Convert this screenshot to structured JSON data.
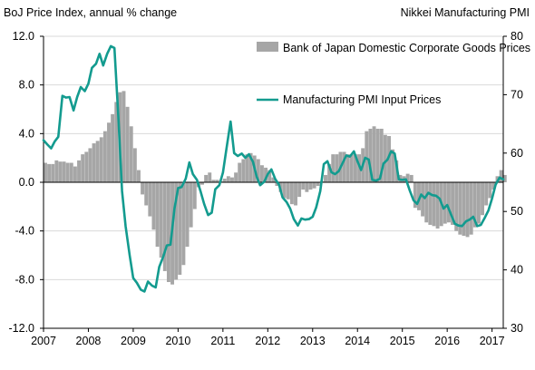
{
  "chart_data": {
    "type": "bar+line",
    "left_axis_title": "BoJ Price Index, annual % change",
    "right_axis_title": "Nikkei Manufacturing PMI",
    "left_ylim": [
      -12,
      12
    ],
    "left_yticks": [
      "12.0",
      "8.0",
      "4.0",
      "0.0",
      "-4.0",
      "-8.0",
      "-12.0"
    ],
    "right_ylim": [
      30,
      80
    ],
    "right_yticks": [
      "80",
      "70",
      "60",
      "50",
      "40",
      "30"
    ],
    "x_range": [
      2007,
      2017.25
    ],
    "x_ticks": [
      "2007",
      "2008",
      "2009",
      "2010",
      "2011",
      "2012",
      "2013",
      "2014",
      "2015",
      "2016",
      "2017"
    ],
    "grid": "horizontal",
    "legend_position": "top-right",
    "colors": {
      "bar": "#a6a6a6",
      "line": "#139b8f",
      "grid": "#d9d9d9",
      "axis": "#000000",
      "text": "#000000"
    },
    "series": [
      {
        "name": "Bank of Japan Domestic Corporate Goods Prices",
        "axis": "left",
        "kind": "bar",
        "x_start": 2007.0,
        "x_step": 0.0833,
        "values": [
          1.6,
          1.5,
          1.5,
          1.8,
          1.7,
          1.7,
          1.6,
          1.6,
          1.3,
          1.8,
          2.3,
          2.5,
          2.8,
          3.2,
          3.4,
          3.7,
          4.2,
          4.9,
          5.6,
          6.6,
          7.4,
          7.5,
          6.2,
          4.6,
          2.8,
          1.0,
          -1.0,
          -1.9,
          -2.8,
          -3.9,
          -5.3,
          -6.2,
          -7.3,
          -8.2,
          -8.4,
          -8.0,
          -7.6,
          -6.8,
          -5.3,
          -3.7,
          -2.2,
          -0.4,
          -0.2,
          0.6,
          0.8,
          0.2,
          0.2,
          0.1,
          0.3,
          0.5,
          0.4,
          0.8,
          1.6,
          1.9,
          2.3,
          2.4,
          2.2,
          1.9,
          1.4,
          1.2,
          1.0,
          0.4,
          -0.3,
          -0.8,
          -1.3,
          -1.4,
          -1.8,
          -1.9,
          -1.2,
          -0.6,
          -0.8,
          -0.6,
          -0.5,
          -0.3,
          0.1,
          0.6,
          1.5,
          2.3,
          2.3,
          2.5,
          2.5,
          2.3,
          2.3,
          2.3,
          2.3,
          2.8,
          4.2,
          4.4,
          4.6,
          4.4,
          4.4,
          3.9,
          3.8,
          2.7,
          1.8,
          0.6,
          0.5,
          0.7,
          0.6,
          -2.1,
          -2.3,
          -2.8,
          -3.3,
          -3.5,
          -3.6,
          -3.8,
          -3.6,
          -3.4,
          -3.3,
          -3.5,
          -4.0,
          -4.3,
          -4.4,
          -4.5,
          -4.3,
          -3.7,
          -3.4,
          -2.7,
          -1.9,
          -1.3,
          -0.6,
          0.5,
          1.0,
          0.6
        ]
      },
      {
        "name": "Manufacturing PMI Input Prices",
        "axis": "right",
        "kind": "line",
        "points": [
          [
            2007.0,
            62.2
          ],
          [
            2007.08,
            61.5
          ],
          [
            2007.17,
            60.8
          ],
          [
            2007.25,
            62.0
          ],
          [
            2007.33,
            62.8
          ],
          [
            2007.42,
            69.8
          ],
          [
            2007.5,
            69.5
          ],
          [
            2007.58,
            69.6
          ],
          [
            2007.67,
            67.3
          ],
          [
            2007.75,
            69.6
          ],
          [
            2007.83,
            71.3
          ],
          [
            2007.92,
            70.6
          ],
          [
            2008.0,
            71.9
          ],
          [
            2008.08,
            74.6
          ],
          [
            2008.17,
            75.3
          ],
          [
            2008.25,
            77.0
          ],
          [
            2008.33,
            75.0
          ],
          [
            2008.42,
            77.0
          ],
          [
            2008.5,
            78.3
          ],
          [
            2008.58,
            78.0
          ],
          [
            2008.67,
            66.0
          ],
          [
            2008.75,
            53.5
          ],
          [
            2008.83,
            47.5
          ],
          [
            2008.92,
            42.5
          ],
          [
            2009.0,
            38.6
          ],
          [
            2009.08,
            37.8
          ],
          [
            2009.17,
            36.6
          ],
          [
            2009.25,
            36.3
          ],
          [
            2009.33,
            38.0
          ],
          [
            2009.42,
            37.3
          ],
          [
            2009.5,
            37.0
          ],
          [
            2009.58,
            40.5
          ],
          [
            2009.67,
            42.3
          ],
          [
            2009.75,
            44.2
          ],
          [
            2009.83,
            44.3
          ],
          [
            2009.92,
            50.5
          ],
          [
            2010.0,
            54.0
          ],
          [
            2010.08,
            54.2
          ],
          [
            2010.17,
            55.6
          ],
          [
            2010.25,
            58.4
          ],
          [
            2010.33,
            56.4
          ],
          [
            2010.42,
            55.4
          ],
          [
            2010.5,
            53.5
          ],
          [
            2010.58,
            51.3
          ],
          [
            2010.67,
            49.4
          ],
          [
            2010.75,
            49.8
          ],
          [
            2010.83,
            53.8
          ],
          [
            2010.92,
            54.5
          ],
          [
            2011.0,
            56.7
          ],
          [
            2011.08,
            60.8
          ],
          [
            2011.17,
            65.4
          ],
          [
            2011.25,
            60.0
          ],
          [
            2011.33,
            59.5
          ],
          [
            2011.42,
            59.9
          ],
          [
            2011.5,
            59.2
          ],
          [
            2011.58,
            59.8
          ],
          [
            2011.67,
            58.5
          ],
          [
            2011.75,
            56.0
          ],
          [
            2011.83,
            54.5
          ],
          [
            2011.92,
            55.1
          ],
          [
            2012.0,
            56.4
          ],
          [
            2012.08,
            57.2
          ],
          [
            2012.17,
            55.5
          ],
          [
            2012.25,
            54.6
          ],
          [
            2012.33,
            52.4
          ],
          [
            2012.42,
            51.6
          ],
          [
            2012.5,
            50.5
          ],
          [
            2012.58,
            48.7
          ],
          [
            2012.67,
            47.6
          ],
          [
            2012.75,
            48.8
          ],
          [
            2012.83,
            48.6
          ],
          [
            2012.92,
            48.7
          ],
          [
            2013.0,
            49.1
          ],
          [
            2013.08,
            50.7
          ],
          [
            2013.17,
            53.5
          ],
          [
            2013.25,
            58.1
          ],
          [
            2013.33,
            58.6
          ],
          [
            2013.42,
            56.7
          ],
          [
            2013.5,
            56.4
          ],
          [
            2013.58,
            56.9
          ],
          [
            2013.67,
            58.3
          ],
          [
            2013.75,
            59.6
          ],
          [
            2013.83,
            59.4
          ],
          [
            2013.92,
            60.3
          ],
          [
            2014.0,
            58.6
          ],
          [
            2014.08,
            57.1
          ],
          [
            2014.17,
            59.2
          ],
          [
            2014.25,
            58.9
          ],
          [
            2014.33,
            55.4
          ],
          [
            2014.42,
            55.3
          ],
          [
            2014.5,
            55.6
          ],
          [
            2014.58,
            58.2
          ],
          [
            2014.67,
            58.9
          ],
          [
            2014.75,
            60.3
          ],
          [
            2014.83,
            59.9
          ],
          [
            2014.92,
            55.5
          ],
          [
            2015.0,
            55.4
          ],
          [
            2015.08,
            55.5
          ],
          [
            2015.17,
            53.5
          ],
          [
            2015.25,
            51.9
          ],
          [
            2015.33,
            51.3
          ],
          [
            2015.42,
            52.9
          ],
          [
            2015.5,
            52.3
          ],
          [
            2015.58,
            53.2
          ],
          [
            2015.67,
            52.8
          ],
          [
            2015.75,
            52.7
          ],
          [
            2015.83,
            52.2
          ],
          [
            2015.92,
            50.5
          ],
          [
            2016.0,
            51.1
          ],
          [
            2016.08,
            49.6
          ],
          [
            2016.17,
            47.9
          ],
          [
            2016.25,
            47.6
          ],
          [
            2016.33,
            47.5
          ],
          [
            2016.42,
            48.3
          ],
          [
            2016.5,
            48.6
          ],
          [
            2016.58,
            49.1
          ],
          [
            2016.67,
            47.5
          ],
          [
            2016.75,
            47.7
          ],
          [
            2016.83,
            48.8
          ],
          [
            2016.92,
            50.2
          ],
          [
            2017.0,
            52.2
          ],
          [
            2017.08,
            54.6
          ],
          [
            2017.17,
            55.8
          ],
          [
            2017.25,
            55.5
          ]
        ]
      }
    ]
  }
}
